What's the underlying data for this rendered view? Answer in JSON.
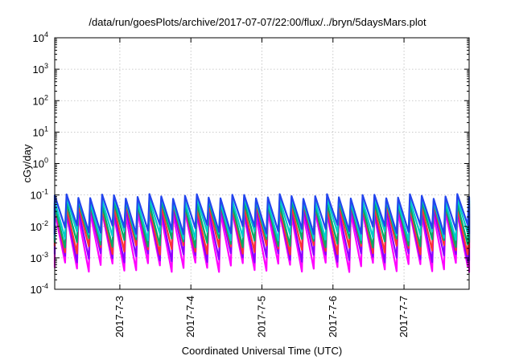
{
  "chart_data": {
    "type": "line",
    "title": "/data/run/goesPlots/archive/2017-07-07/22:00/flux/../bryn/5daysMars.plot",
    "xlabel": "Coordinated Universal Time (UTC)",
    "ylabel": "cGy/day",
    "x_range": [
      "2017-07-02 02:00",
      "2017-07-07 22:00"
    ],
    "x_tick_labels": [
      "2017-7-3",
      "2017-7-4",
      "2017-7-5",
      "2017-7-6",
      "2017-7-7"
    ],
    "y_scale": "log",
    "ylim": [
      0.0001,
      10000
    ],
    "y_tick_labels": [
      {
        "base": "10",
        "exp": "4"
      },
      {
        "base": "10",
        "exp": "3"
      },
      {
        "base": "10",
        "exp": "2"
      },
      {
        "base": "10",
        "exp": "1"
      },
      {
        "base": "10",
        "exp": "0"
      },
      {
        "base": "10",
        "exp": "-1"
      },
      {
        "base": "10",
        "exp": "-2"
      },
      {
        "base": "10",
        "exp": "-3"
      },
      {
        "base": "10",
        "exp": "-4"
      }
    ],
    "grid": true,
    "cycle_period_hours": 4,
    "series": [
      {
        "color": "#ff00ff",
        "peak": 0.025,
        "trough": 0.0005
      },
      {
        "color": "#8b00ff",
        "peak": 0.035,
        "trough": 0.001
      },
      {
        "color": "#ff3333",
        "peak": 0.045,
        "trough": 0.0018
      },
      {
        "color": "#00aa66",
        "peak": 0.055,
        "trough": 0.003
      },
      {
        "color": "#00cccc",
        "peak": 0.07,
        "trough": 0.005
      },
      {
        "color": "#2244ee",
        "peak": 0.09,
        "trough": 0.008
      }
    ]
  }
}
